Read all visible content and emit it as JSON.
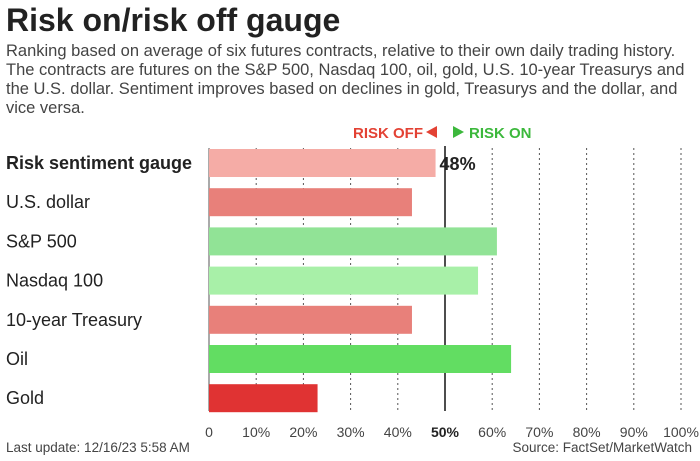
{
  "title": "Risk on/risk off gauge",
  "subtitle": "Ranking based on average of six futures contracts, relative to their own daily trading history. The contracts are futures on the S&P 500, Nasdaq 100, oil, gold, U.S. 10-year Treasurys and the U.S. dollar. Sentiment improves based on declines in gold, Treasurys and the dollar, and vice versa.",
  "footer": {
    "last_update": "Last update: 12/16/23 5:58 AM",
    "source": "Source: FactSet/MarketWatch"
  },
  "chart_data": {
    "type": "bar",
    "orientation": "horizontal",
    "categories": [
      "Risk sentiment gauge",
      "U.S. dollar",
      "S&P 500",
      "Nasdaq 100",
      "10-year Treasury",
      "Oil",
      "Gold"
    ],
    "values": [
      48,
      43,
      61,
      57,
      43,
      64,
      23
    ],
    "colors": [
      "#f5aca6",
      "#e8807a",
      "#91e396",
      "#a8f0a8",
      "#e8807a",
      "#62dd62",
      "#e03333"
    ],
    "highlight_value_label": "48%",
    "xlim": [
      0,
      100
    ],
    "x_ticks": [
      "0",
      "10%",
      "20%",
      "30%",
      "40%",
      "50%",
      "60%",
      "70%",
      "80%",
      "90%",
      "100%"
    ],
    "grid": "vertical dotted",
    "midline_value": 50,
    "risk_off_label": "RISK OFF",
    "risk_on_label": "RISK ON",
    "risk_off_color": "#e34234",
    "risk_on_color": "#3cb83c"
  }
}
